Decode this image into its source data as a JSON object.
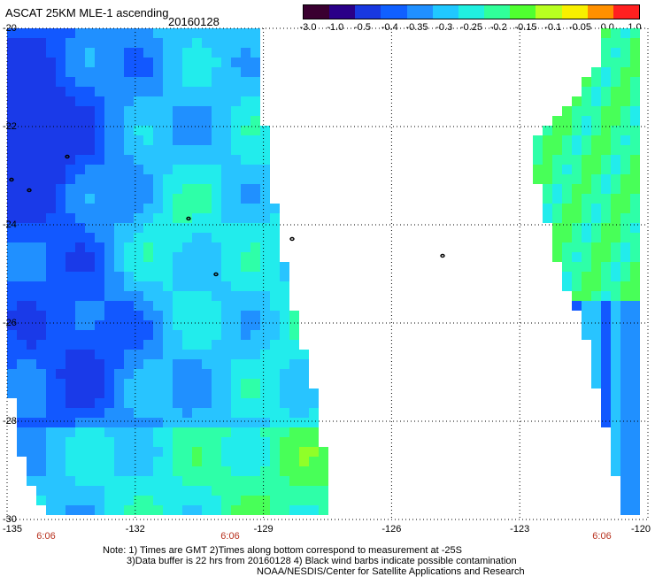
{
  "header": {
    "title": "ASCAT 25KM MLE-1 ascending",
    "date": "20160128"
  },
  "colorbar": {
    "colors": [
      "#3a0030",
      "#2a0088",
      "#1838e0",
      "#1060ff",
      "#2090ff",
      "#20c8ff",
      "#20f0e0",
      "#30ff9a",
      "#50ff30",
      "#b8ff20",
      "#f8f000",
      "#ff9000",
      "#ff2020"
    ],
    "labels": [
      "-3.0",
      "-1.0",
      "-0.5",
      "-0.4",
      "-0.35",
      "-0.3",
      "-0.25",
      "-0.2",
      "-0.15",
      "-0.1",
      "-0.05",
      "0.0",
      "1.0"
    ]
  },
  "map": {
    "lon_range": [
      -135,
      -120
    ],
    "lat_range": [
      -30,
      -20
    ],
    "lon_ticks": [
      "-135",
      "-132",
      "-129",
      "-126",
      "-123",
      "-120"
    ],
    "lat_ticks": [
      "-20",
      "-22",
      "-24",
      "-26",
      "-28",
      "-30"
    ],
    "grid_lons": [
      -132,
      -129,
      -126,
      -123
    ],
    "grid_lats": [
      -22,
      -24,
      -26,
      -28
    ],
    "time_labels": [
      "6:06",
      "6:06",
      "6:06"
    ],
    "swath_west": [
      [
        -135,
        -20
      ],
      [
        -131.9,
        -20
      ],
      [
        -129.1,
        -20
      ],
      [
        -129.1,
        -20.8
      ],
      [
        -128.8,
        -23.2
      ],
      [
        -128.3,
        -25.7
      ],
      [
        -127.8,
        -27.5
      ],
      [
        -127.5,
        -29
      ],
      [
        -127.4,
        -30
      ],
      [
        -134.0,
        -30
      ],
      [
        -134.6,
        -29
      ],
      [
        -135,
        -27
      ]
    ],
    "swath_east": [
      [
        -121.1,
        -20
      ],
      [
        -120.1,
        -20
      ],
      [
        -120.1,
        -30
      ],
      [
        -120.5,
        -30
      ],
      [
        -120.9,
        -28.5
      ],
      [
        -121.4,
        -26.5
      ],
      [
        -122.2,
        -24.5
      ],
      [
        -122.8,
        -22.5
      ],
      [
        -121.1,
        -20.7
      ]
    ],
    "field_colors": [
      "#1a3ae8",
      "#1258ff",
      "#2090ff",
      "#28c4ff",
      "#22ecec",
      "#2effa8",
      "#48ff58",
      "#90ff28"
    ]
  },
  "notes": {
    "line1": "Note: 1) Times are GMT  2)Times along bottom correspond to measurement at -25S",
    "line2": "3)Data buffer is 22 hrs from 20160128  4) Black wind barbs indicate possible contamination",
    "line3": "NOAA/NESDIS/Center for Satellite Applications and Research"
  }
}
